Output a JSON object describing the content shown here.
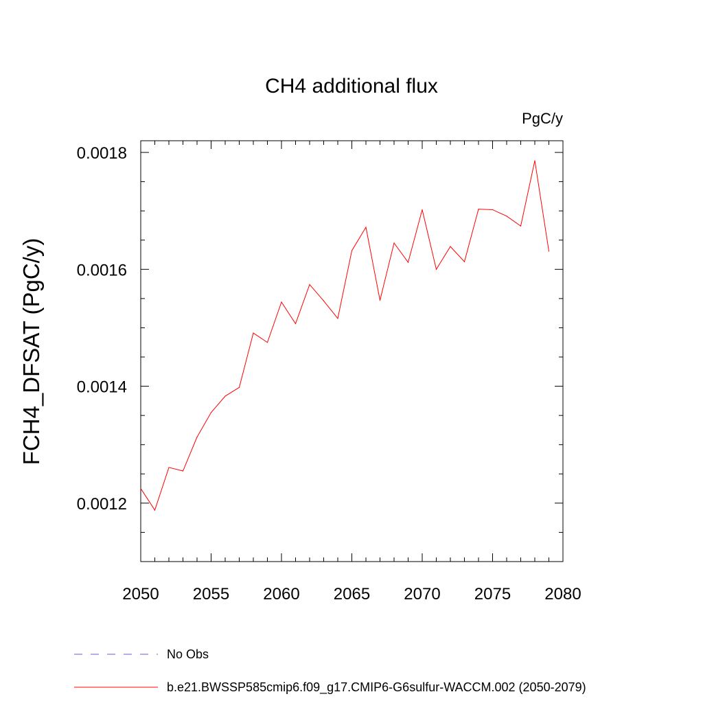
{
  "chart_data": {
    "type": "line",
    "title": "CH4 additional flux",
    "units": "PgC/y",
    "xlabel": "",
    "ylabel": "FCH4_DFSAT  (PgC/y)",
    "xlim": [
      2050,
      2080
    ],
    "ylim": [
      0.0011,
      0.00182
    ],
    "x_ticks": [
      2050,
      2055,
      2060,
      2065,
      2070,
      2075,
      2080
    ],
    "y_ticks": [
      0.0012,
      0.0014,
      0.0016,
      0.0018
    ],
    "y_tick_labels": [
      "0.0012",
      "0.0014",
      "0.0016",
      "0.0018"
    ],
    "grid": false,
    "legend_position": "bottom",
    "series": [
      {
        "name": "b.e21.BWSSP585cmip6.f09_g17.CMIP6-G6sulfur-WACCM.002 (2050-2079)",
        "color": "#ff0000",
        "style": "solid",
        "x": [
          2050,
          2051,
          2052,
          2053,
          2054,
          2055,
          2056,
          2057,
          2058,
          2059,
          2060,
          2061,
          2062,
          2063,
          2064,
          2065,
          2066,
          2067,
          2068,
          2069,
          2070,
          2071,
          2072,
          2073,
          2074,
          2075,
          2076,
          2077,
          2078,
          2079
        ],
        "values": [
          0.001225,
          0.001188,
          0.001261,
          0.001255,
          0.001313,
          0.001355,
          0.001383,
          0.001398,
          0.001491,
          0.001475,
          0.001544,
          0.001507,
          0.001574,
          0.001546,
          0.001516,
          0.001632,
          0.001672,
          0.001547,
          0.001645,
          0.001612,
          0.001702,
          0.0016,
          0.001639,
          0.001613,
          0.001703,
          0.001702,
          0.001691,
          0.001674,
          0.001786,
          0.001631
        ]
      },
      {
        "name": "No Obs",
        "color": "#6a5acd",
        "style": "dashed",
        "x": [],
        "values": []
      }
    ]
  }
}
